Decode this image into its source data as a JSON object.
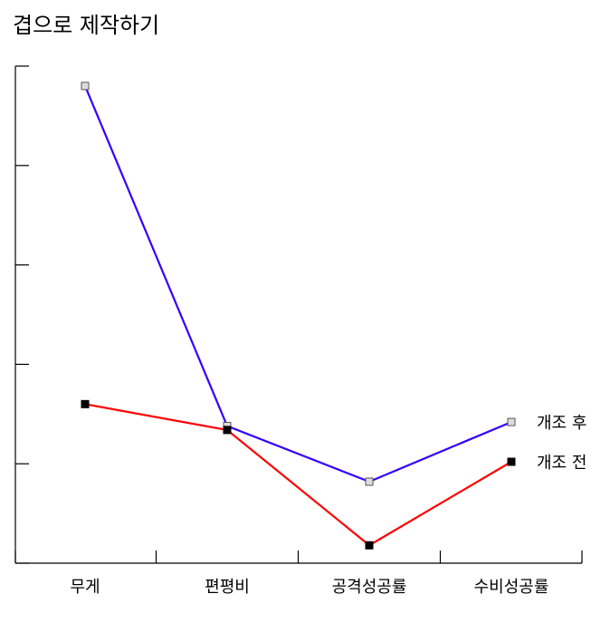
{
  "chart_data": {
    "type": "line",
    "title": "겹으로 제작하기",
    "categories": [
      "무게",
      "편평비",
      "공격성공률",
      "수비성공률"
    ],
    "ylim": [
      0,
      5
    ],
    "yticks": [
      0,
      1,
      2,
      3,
      4,
      5
    ],
    "grid": false,
    "legend": "end-of-line labels",
    "series": [
      {
        "name": "개조 후",
        "color": "#3300ff",
        "marker": "open-square",
        "values": [
          4.8,
          1.38,
          0.82,
          1.42
        ]
      },
      {
        "name": "개조 전",
        "color": "#ff0000",
        "marker": "filled-square",
        "values": [
          1.6,
          1.34,
          0.18,
          1.02
        ]
      }
    ]
  }
}
